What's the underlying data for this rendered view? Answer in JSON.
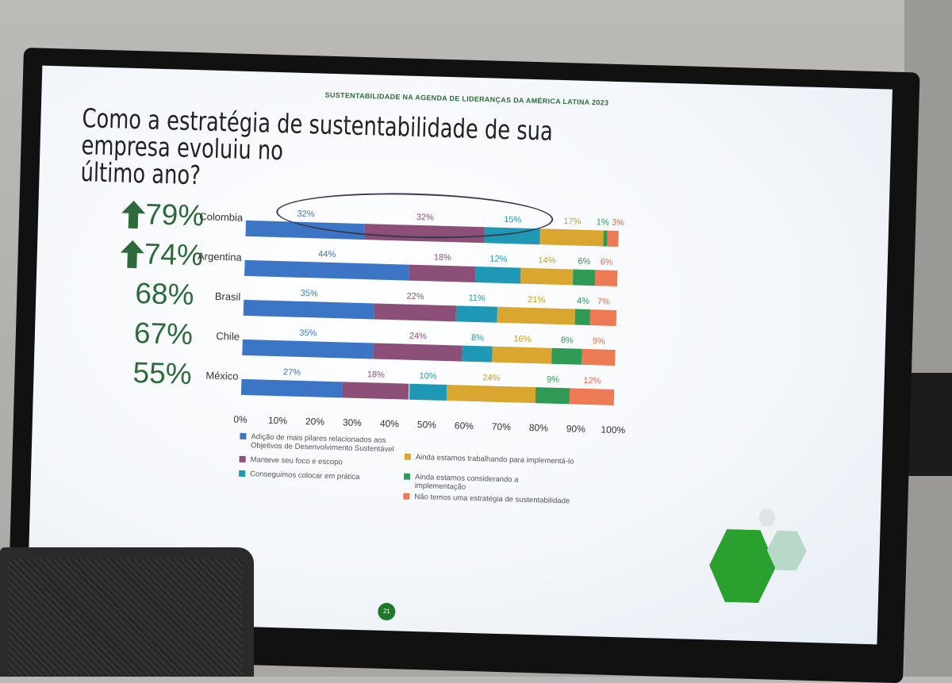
{
  "slide": {
    "header": "SUSTENTABILIDADE NA AGENDA DE LIDERANÇAS DA AMÉRICA LATINA 2023",
    "title_line1": "Como a estratégia de sustentabilidade de sua empresa evoluiu no",
    "title_line2": "último ano?",
    "page_number": "21"
  },
  "summary": [
    {
      "country": "Colombia",
      "value": "79%",
      "trend": "up"
    },
    {
      "country": "Argentina",
      "value": "74%",
      "trend": "up"
    },
    {
      "country": "Brasil",
      "value": "68%",
      "trend": "none"
    },
    {
      "country": "Chile",
      "value": "67%",
      "trend": "none"
    },
    {
      "country": "México",
      "value": "55%",
      "trend": "none"
    }
  ],
  "colors": {
    "series": [
      "#3c74c6",
      "#8c4f78",
      "#1f98b5",
      "#d9a630",
      "#2e9a55",
      "#ec7a52"
    ],
    "accent": "#2e6b3a",
    "label_colors": [
      "#3c74c6",
      "#8c4f78",
      "#1f98b5",
      "#c9a022",
      "#2e9a55",
      "#e0704c"
    ]
  },
  "chart_data": {
    "type": "bar",
    "orientation": "horizontal",
    "stacked": true,
    "categories": [
      "Colombia",
      "Argentina",
      "Brasil",
      "Chile",
      "México"
    ],
    "series": [
      {
        "name": "Adição de mais pilares relacionados aos Objetivos de Desenvolvimento Sustentável",
        "values": [
          32,
          44,
          35,
          35,
          27
        ],
        "labels": [
          "32%",
          "44%",
          "35%",
          "35%",
          "27%"
        ]
      },
      {
        "name": "Manteve seu foco e escopo",
        "values": [
          32,
          18,
          22,
          24,
          18
        ],
        "labels": [
          "32%",
          "18%",
          "22%",
          "24%",
          "18%"
        ]
      },
      {
        "name": "Conseguimos colocar em prática",
        "values": [
          15,
          12,
          11,
          8,
          10
        ],
        "labels": [
          "15%",
          "12%",
          "11%",
          "8%",
          "10%"
        ]
      },
      {
        "name": "Ainda estamos trabalhando para implementá-lo",
        "values": [
          17,
          14,
          21,
          16,
          24
        ],
        "labels": [
          "17%",
          "14%",
          "21%",
          "16%",
          "24%"
        ]
      },
      {
        "name": "Ainda estamos considerando a implementação",
        "values": [
          1,
          6,
          4,
          8,
          9
        ],
        "labels": [
          "1%",
          "6%",
          "4%",
          "8%",
          "9%"
        ]
      },
      {
        "name": "Não temos uma estratégia de sustentabilidade",
        "values": [
          3,
          6,
          7,
          9,
          12
        ],
        "labels": [
          "3%",
          "6%",
          "7%",
          "9%",
          "12%"
        ]
      }
    ],
    "x_ticks": [
      "0%",
      "10%",
      "20%",
      "30%",
      "40%",
      "50%",
      "60%",
      "70%",
      "80%",
      "90%",
      "100%"
    ],
    "xlim": [
      0,
      100
    ],
    "legend_position": "bottom",
    "annotation": "ellipse around first three Colombia segments"
  },
  "legend": [
    {
      "line1": "Adição de mais pilares relacionados aos",
      "line2": "Objetivos de Desenvolvimento Sustentável"
    },
    {
      "line1": "Manteve seu foco e escopo",
      "line2": ""
    },
    {
      "line1": "Conseguimos colocar em prática",
      "line2": ""
    },
    {
      "line1": "Ainda estamos trabalhando para implementá-lo",
      "line2": ""
    },
    {
      "line1": "Ainda estamos considerando a",
      "line2": "implementação"
    },
    {
      "line1": "Não temos uma estratégia de sustentabilidade",
      "line2": ""
    }
  ]
}
